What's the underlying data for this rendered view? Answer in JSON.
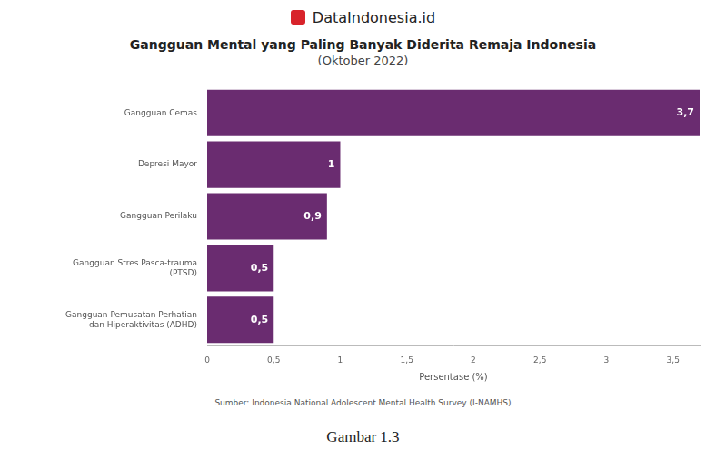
{
  "brand": "DataIndonesia.id",
  "caption": "Gambar 1.3",
  "chart_data": {
    "type": "bar",
    "orientation": "horizontal",
    "title": "Gangguan Mental yang Paling Banyak Diderita Remaja Indonesia",
    "subtitle": "(Oktober 2022)",
    "categories": [
      "Gangguan Cemas",
      "Depresi Mayor",
      "Gangguan Perilaku",
      "Gangguan Stres Pasca-trauma (PTSD)",
      "Gangguan Pemusatan Perhatian dan Hiperaktivitas (ADHD)"
    ],
    "values": [
      3.7,
      1,
      0.9,
      0.5,
      0.5
    ],
    "value_labels": [
      "3,7",
      "1",
      "0,9",
      "0,5",
      "0,5"
    ],
    "data_labels": true,
    "color": "#6a2c70",
    "x_label": "Persentase (%)",
    "xlim": [
      0,
      3.7
    ],
    "xticks": [
      0,
      {
        "value": 0.5,
        "label": "0,5"
      },
      1,
      {
        "value": 1.5,
        "label": "1,5"
      },
      2,
      {
        "value": 2.5,
        "label": "2,5"
      },
      3,
      {
        "value": 3.5,
        "label": "3,5"
      }
    ],
    "grid": false,
    "source": "Sumber: Indonesia National Adolescent Mental Health Survey (I-NAMHS)"
  }
}
